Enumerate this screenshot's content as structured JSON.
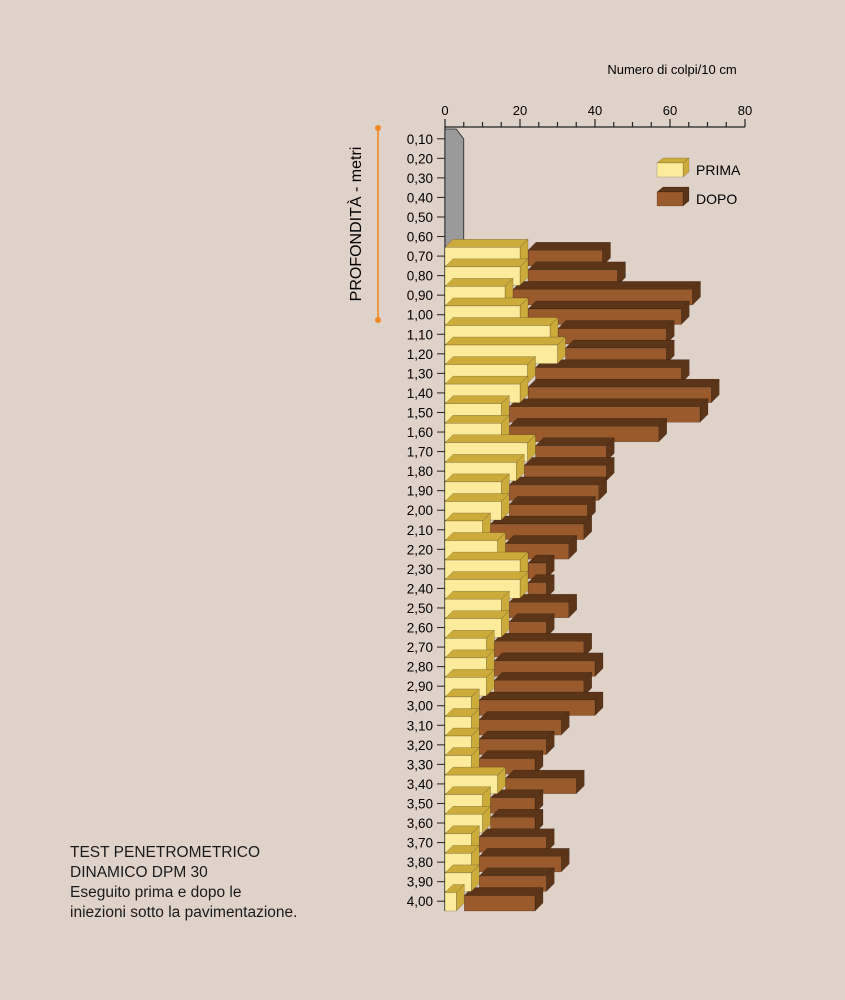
{
  "chart_data": {
    "type": "bar",
    "orientation": "horizontal",
    "axis_title": "Numero di colpi/10 cm",
    "ylabel": "PROFONDITÀ - metri",
    "xlim": [
      0,
      80
    ],
    "x_ticks": [
      "0",
      "20",
      "40",
      "60",
      "80"
    ],
    "categories": [
      "0,10",
      "0,20",
      "0,30",
      "0,40",
      "0,50",
      "0,60",
      "0,70",
      "0,80",
      "0,90",
      "1,00",
      "1,10",
      "1,20",
      "1,30",
      "1,40",
      "1,50",
      "1,60",
      "1,70",
      "1,80",
      "1,90",
      "2,00",
      "2,10",
      "2,20",
      "2,30",
      "2,40",
      "2,50",
      "2,60",
      "2,70",
      "2,80",
      "2,90",
      "3,00",
      "3,10",
      "3,20",
      "3,30",
      "3,40",
      "3,50",
      "3,60",
      "3,70",
      "3,80",
      "3,90",
      "4,00"
    ],
    "pre_treatment_depth": [
      "0,10",
      "0,60"
    ],
    "pre_treatment_value_range": [
      3,
      5
    ],
    "legend_position": "top-right",
    "series": [
      {
        "name": "PRIMA",
        "color": "#fbeb9a",
        "values": [
          null,
          null,
          null,
          null,
          null,
          null,
          20,
          20,
          16,
          20,
          28,
          30,
          22,
          20,
          15,
          15,
          22,
          19,
          15,
          15,
          10,
          14,
          20,
          20,
          15,
          15,
          11,
          11,
          11,
          7,
          7,
          7,
          7,
          14,
          10,
          10,
          7,
          7,
          7,
          3
        ]
      },
      {
        "name": "DOPO",
        "color": "#9a5a2c",
        "values": [
          null,
          null,
          null,
          null,
          null,
          null,
          42,
          46,
          66,
          63,
          59,
          59,
          63,
          71,
          68,
          57,
          43,
          43,
          41,
          38,
          37,
          33,
          27,
          27,
          33,
          27,
          37,
          40,
          37,
          40,
          31,
          27,
          24,
          35,
          24,
          24,
          27,
          31,
          27,
          24
        ]
      }
    ]
  },
  "caption": {
    "line1": "TEST PENETROMETRICO",
    "line2": "DINAMICO DPM 30",
    "line3": "Eseguito prima e dopo le",
    "line4": "iniezioni sotto la pavimentazione."
  },
  "colors": {
    "background": "#dfd2c8",
    "prima_front": "#fbeb9a",
    "prima_side": "#cdab3b",
    "dopo_front": "#9a5a2c",
    "dopo_side": "#5c3418",
    "grey_front": "#9a9a9a",
    "axis_bracket": "#ef8a23"
  }
}
